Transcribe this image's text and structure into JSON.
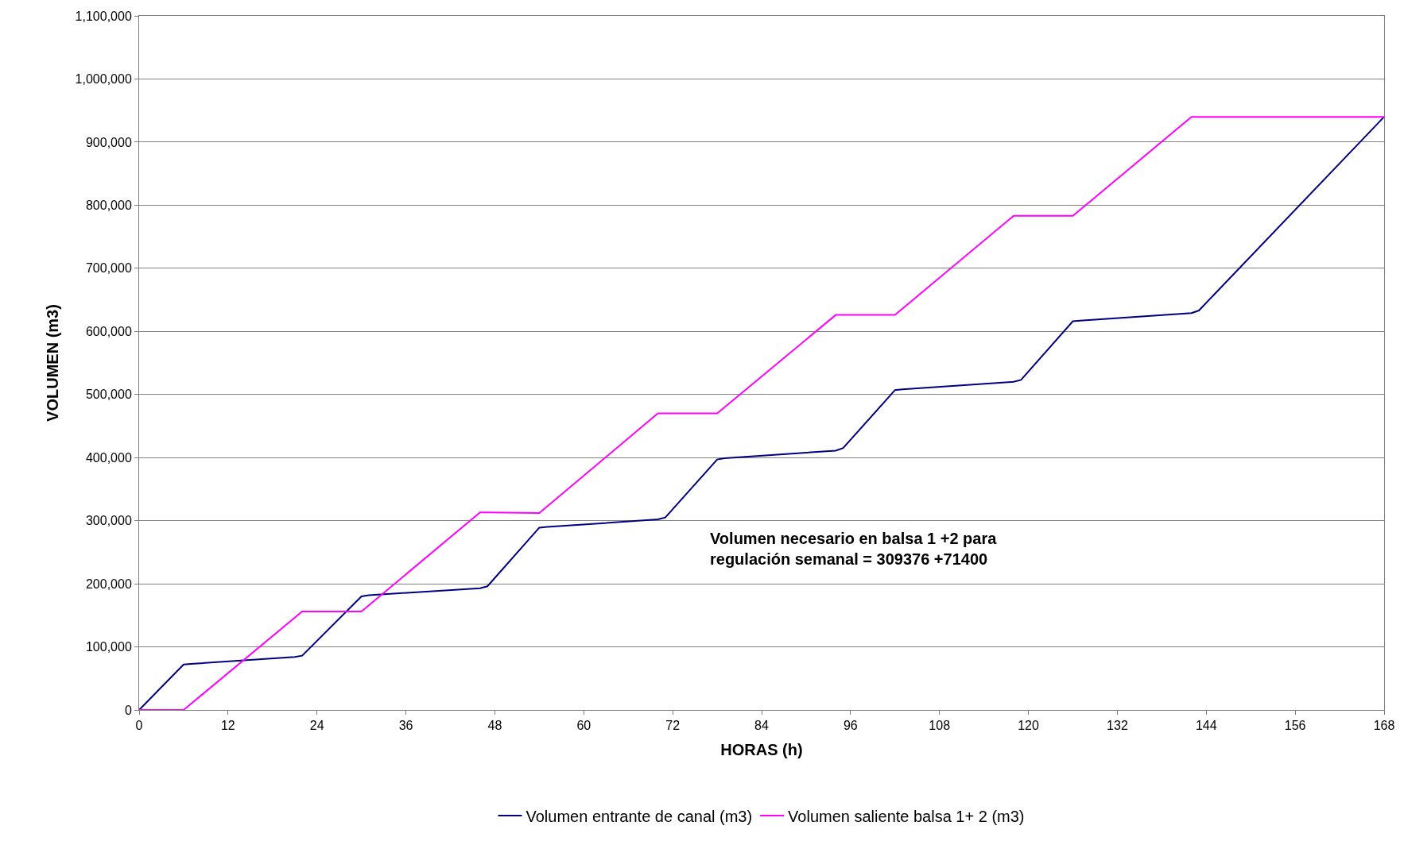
{
  "chart_data": {
    "type": "line",
    "xlabel": "HORAS (h)",
    "ylabel": "VOLUMEN (m3)",
    "xlim": [
      0,
      168
    ],
    "xticks": [
      0,
      12,
      24,
      36,
      48,
      60,
      72,
      84,
      96,
      108,
      120,
      132,
      144,
      156,
      168
    ],
    "ylim": [
      0,
      1100000
    ],
    "yticks": [
      {
        "value": 0,
        "label": "0"
      },
      {
        "value": 100000,
        "label": "100,000"
      },
      {
        "value": 200000,
        "label": "200,000"
      },
      {
        "value": 300000,
        "label": "300,000"
      },
      {
        "value": 400000,
        "label": "400,000"
      },
      {
        "value": 500000,
        "label": "500,000"
      },
      {
        "value": 600000,
        "label": "600,000"
      },
      {
        "value": 700000,
        "label": "700,000"
      },
      {
        "value": 800000,
        "label": "800,000"
      },
      {
        "value": 900000,
        "label": "900,000"
      },
      {
        "value": 1000000,
        "label": "1,000,000"
      },
      {
        "value": 1100000,
        "label": "1,100,000"
      }
    ],
    "grid": "y",
    "legend": "bottom",
    "marker": "none",
    "line_style": "solid",
    "series": [
      {
        "name": "Volumen entrante de canal (m3)",
        "color": "#000080",
        "x": [
          0,
          6,
          7,
          21,
          22,
          30,
          31,
          46,
          47,
          54,
          55,
          70,
          71,
          78,
          79,
          94,
          95,
          102,
          103,
          118,
          119,
          126,
          127,
          142,
          143,
          168
        ],
        "values": [
          0,
          72000,
          73000,
          84000,
          86000,
          180000,
          182000,
          193000,
          196000,
          289000,
          290000,
          302000,
          305000,
          397000,
          399000,
          411000,
          415000,
          507000,
          508000,
          520000,
          523000,
          616000,
          617000,
          629000,
          633000,
          940000
        ]
      },
      {
        "name": "Volumen saliente balsa 1+ 2 (m3)",
        "color": "#ff00ff",
        "x": [
          0,
          6,
          22,
          23,
          30,
          46,
          47,
          54,
          70,
          71,
          78,
          94,
          95,
          102,
          118,
          119,
          126,
          142,
          143,
          168
        ],
        "values": [
          0,
          0,
          156000,
          156000,
          156000,
          313000,
          313000,
          312000,
          470000,
          470000,
          470000,
          626000,
          626000,
          626000,
          783000,
          783000,
          783000,
          940000,
          940000,
          940000
        ]
      }
    ],
    "annotations": [
      "Volumen necesario en balsa 1 +2 para\nregulación semanal = 309376 +71400"
    ]
  }
}
